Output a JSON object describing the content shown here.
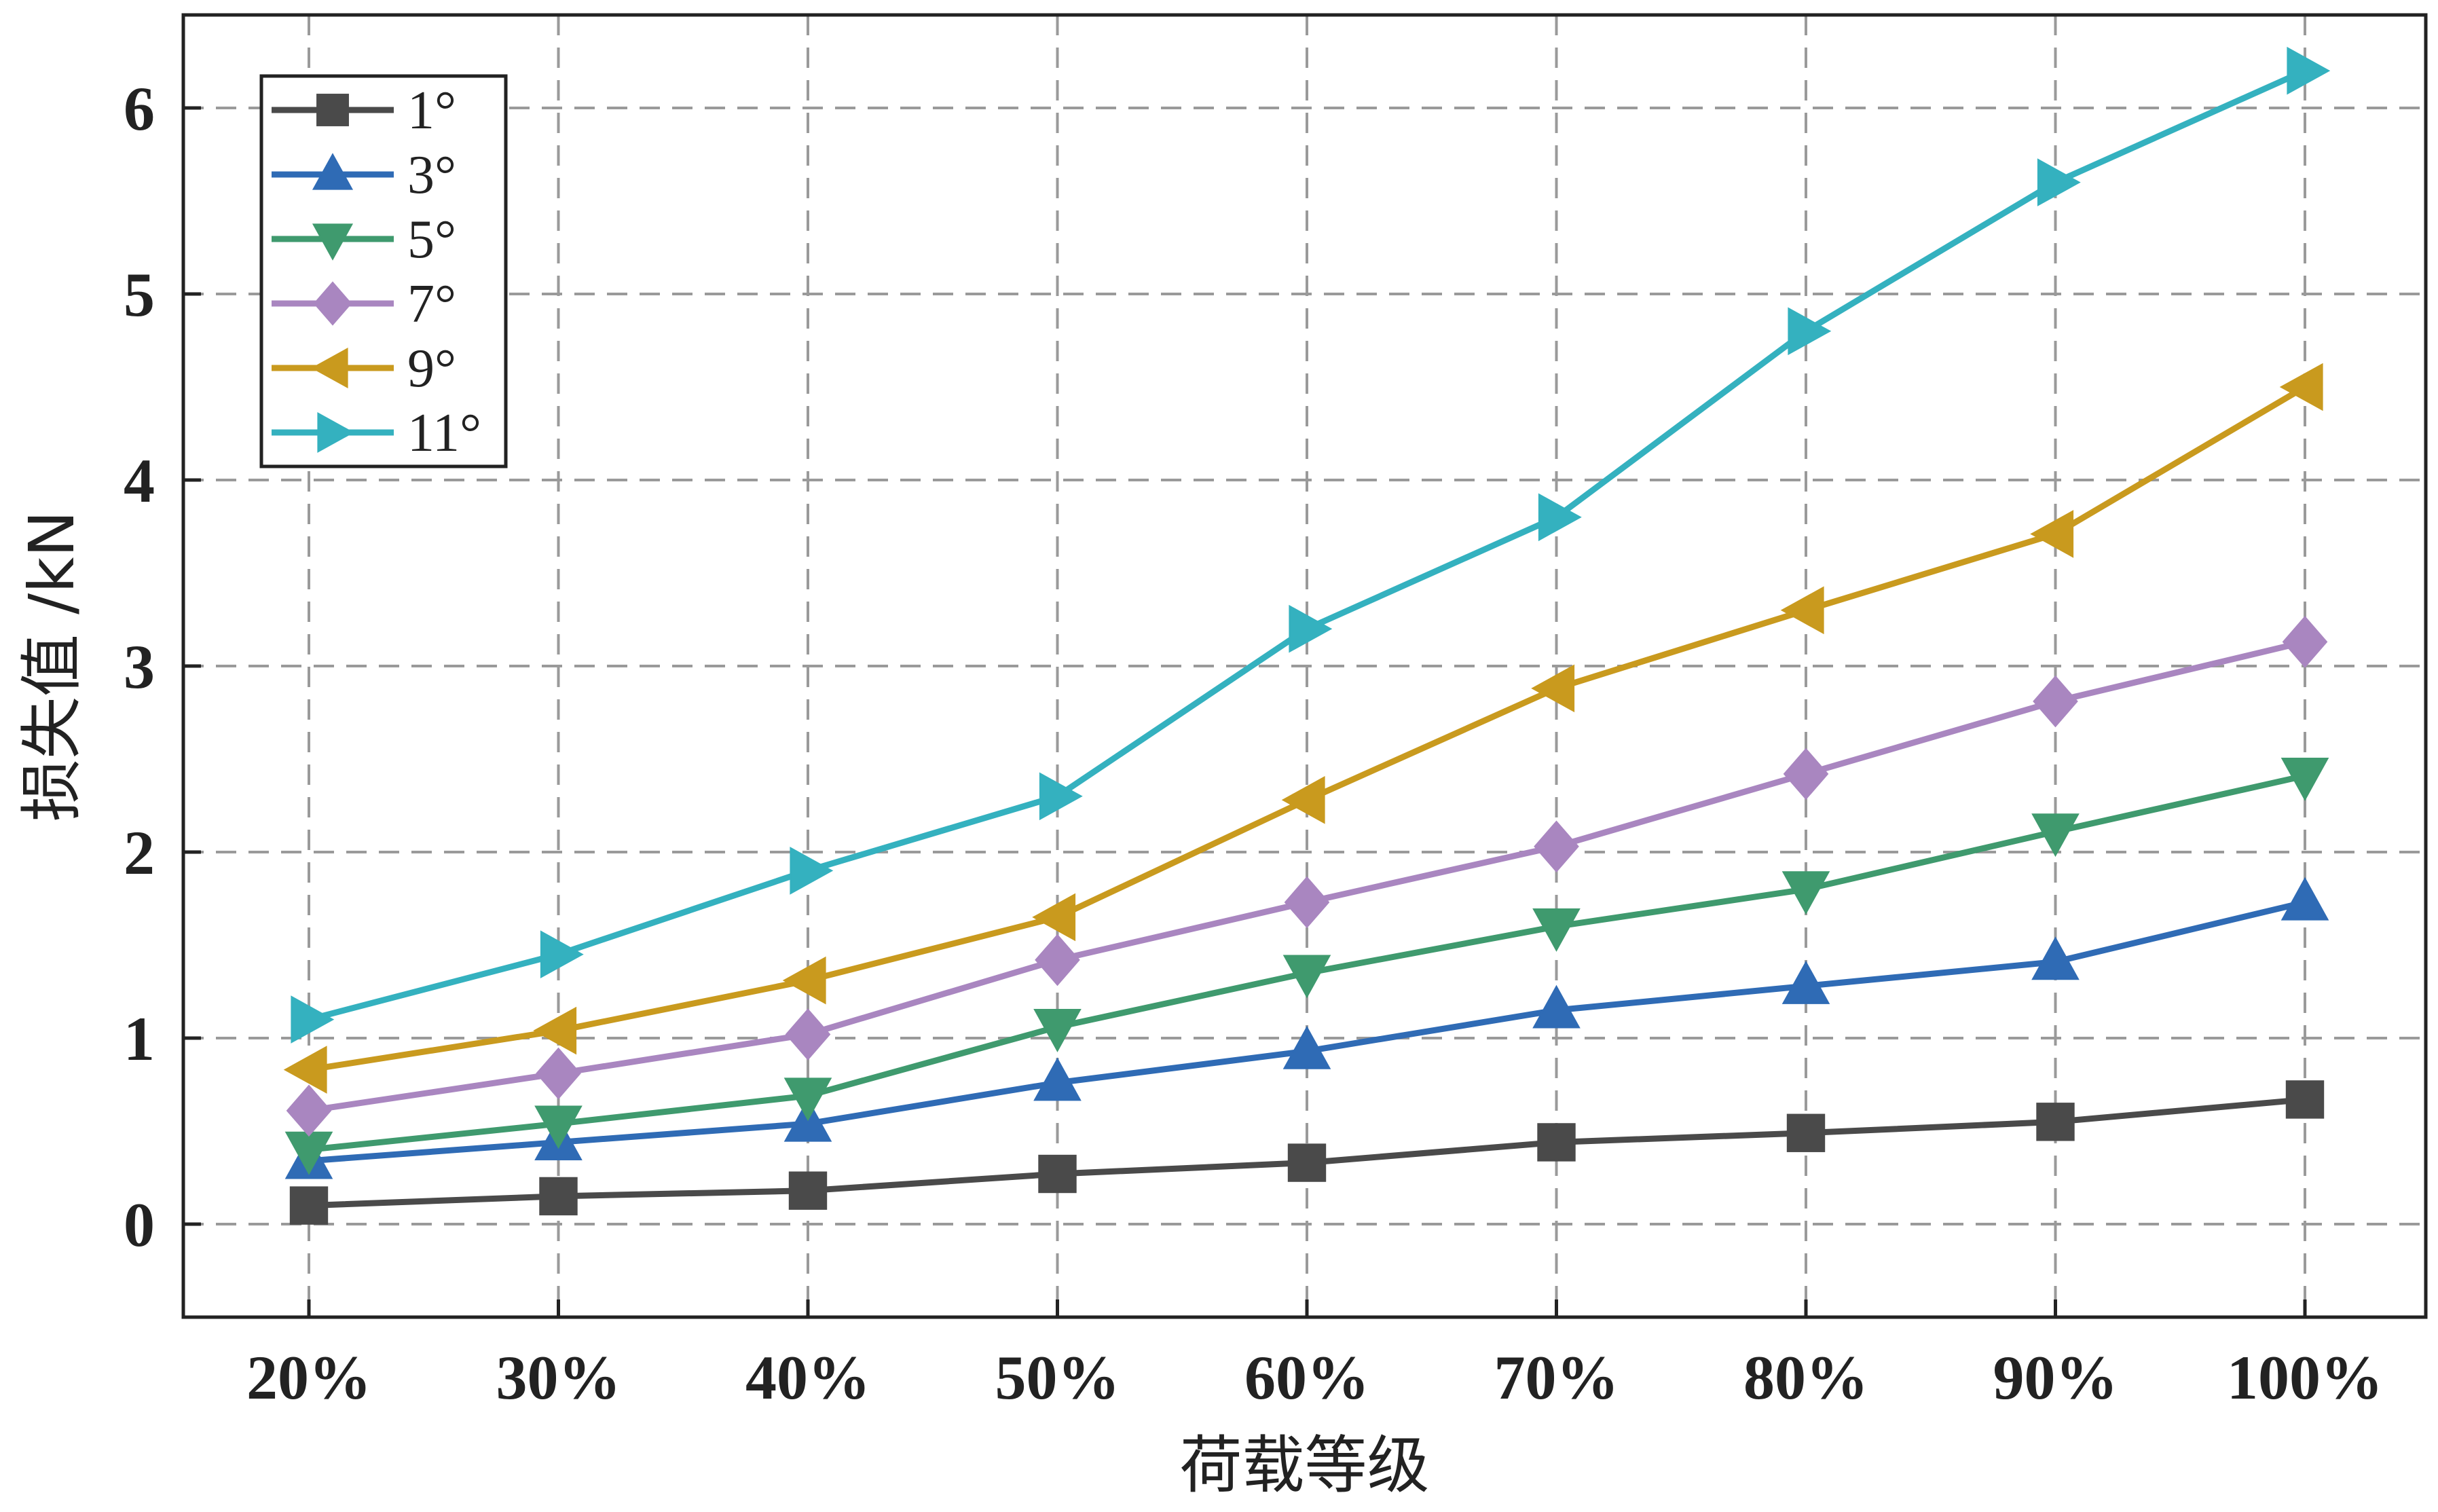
{
  "chart_data": {
    "type": "line",
    "categories": [
      "20%",
      "30%",
      "40%",
      "50%",
      "60%",
      "70%",
      "80%",
      "90%",
      "100%"
    ],
    "xlabel": "荷载等级",
    "ylabel": "损失值 /kN",
    "ylim": [
      -0.5,
      6.5
    ],
    "yticks": [
      0,
      1,
      2,
      3,
      4,
      5,
      6
    ],
    "grid": true,
    "legend_position": "top-left",
    "series": [
      {
        "name": "1°",
        "color": "#4a4a4a",
        "marker": "square",
        "values": [
          0.1,
          0.15,
          0.18,
          0.27,
          0.33,
          0.44,
          0.49,
          0.55,
          0.67
        ]
      },
      {
        "name": "3°",
        "color": "#2f6bb5",
        "marker": "triangle-up",
        "values": [
          0.34,
          0.44,
          0.54,
          0.76,
          0.93,
          1.15,
          1.28,
          1.41,
          1.73
        ]
      },
      {
        "name": "5°",
        "color": "#3f9a6e",
        "marker": "triangle-down",
        "values": [
          0.4,
          0.54,
          0.69,
          1.06,
          1.35,
          1.6,
          1.8,
          2.11,
          2.41
        ]
      },
      {
        "name": "7°",
        "color": "#a986c0",
        "marker": "diamond",
        "values": [
          0.61,
          0.81,
          1.02,
          1.42,
          1.73,
          2.03,
          2.42,
          2.81,
          3.13
        ]
      },
      {
        "name": "9°",
        "color": "#c99a1e",
        "marker": "triangle-left",
        "values": [
          0.83,
          1.04,
          1.31,
          1.65,
          2.28,
          2.88,
          3.3,
          3.71,
          4.5
        ]
      },
      {
        "name": "11°",
        "color": "#34b1bf",
        "marker": "triangle-right",
        "values": [
          1.1,
          1.45,
          1.9,
          2.3,
          3.2,
          3.8,
          4.8,
          5.6,
          6.2
        ]
      }
    ]
  }
}
